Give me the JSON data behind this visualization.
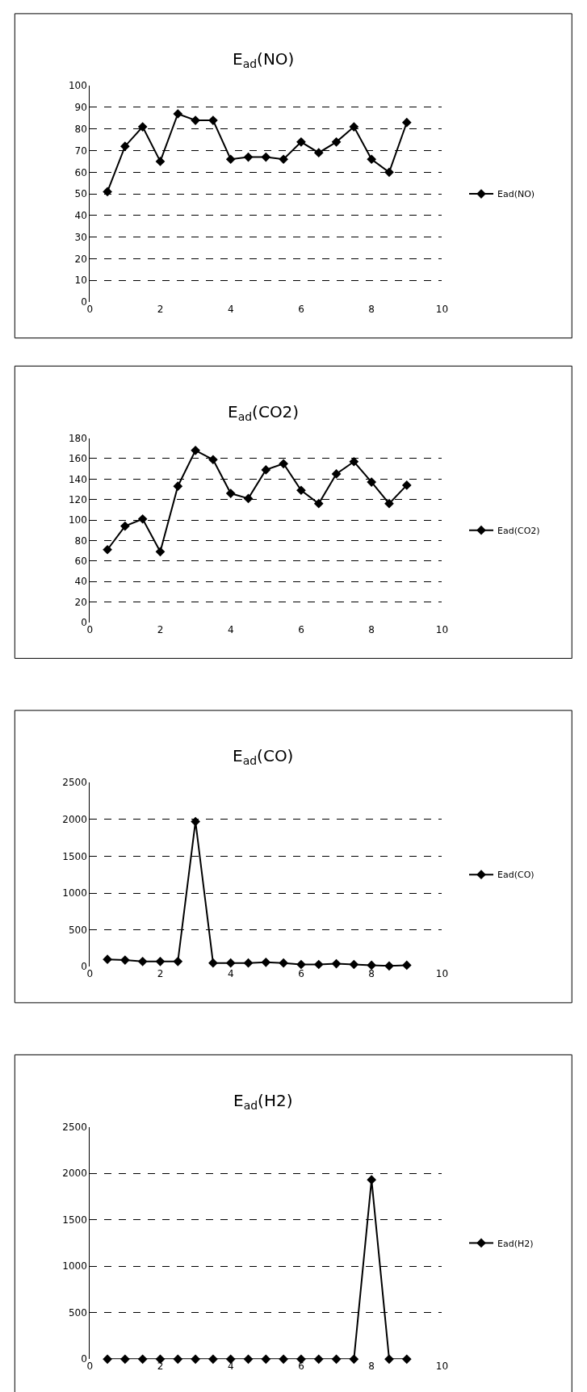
{
  "chart_data": [
    {
      "type": "line",
      "title": "E$_{ad}$(NO)",
      "x": [
        0.5,
        1,
        1.5,
        2,
        2.5,
        3,
        3.5,
        4,
        4.5,
        5,
        5.5,
        6,
        6.5,
        7,
        7.5,
        8,
        8.5,
        9
      ],
      "series": [
        {
          "name": "Ead(NO)",
          "color": "#000000",
          "values": [
            51,
            72,
            81,
            65,
            87,
            84,
            84,
            66,
            67,
            67,
            66,
            74,
            69,
            74,
            81,
            66,
            60,
            83
          ]
        }
      ],
      "xlim": [
        0,
        10
      ],
      "xticks": [
        0,
        2,
        4,
        6,
        {
          "value": 8,
          "label": "8"
        },
        10
      ],
      "ylim": [
        0,
        100
      ],
      "yticks": [
        0,
        10,
        20,
        30,
        40,
        50,
        60,
        70,
        80,
        90,
        100
      ],
      "grid": "y",
      "legend": "right",
      "marker": "diamond"
    },
    {
      "type": "line",
      "title": "E$_{ad}$(CO2)",
      "x": [
        0.5,
        1,
        1.5,
        2,
        2.5,
        3,
        3.5,
        4,
        4.5,
        5,
        5.5,
        6,
        6.5,
        7,
        7.5,
        8,
        8.5,
        9
      ],
      "series": [
        {
          "name": "Ead(CO2)",
          "color": "#000000",
          "values": [
            71,
            94,
            101,
            69,
            133,
            168,
            159,
            126,
            121,
            149,
            155,
            129,
            116,
            145,
            157,
            137,
            116,
            134
          ]
        }
      ],
      "xlim": [
        0,
        10
      ],
      "xticks": [
        0,
        2,
        4,
        6,
        8,
        10
      ],
      "ylim": [
        0,
        180
      ],
      "yticks": [
        0,
        20,
        40,
        60,
        80,
        100,
        120,
        140,
        160,
        180
      ],
      "grid": "y",
      "legend": "right",
      "marker": "diamond"
    },
    {
      "type": "line",
      "title": "E$_{ad}$(CO)",
      "x": [
        0.5,
        1,
        1.5,
        2,
        2.5,
        3,
        3.5,
        4,
        4.5,
        5,
        5.5,
        6,
        6.5,
        7,
        7.5,
        8,
        8.5,
        9
      ],
      "series": [
        {
          "name": "Ead(CO)",
          "color": "#000000",
          "values": [
            100,
            90,
            70,
            70,
            70,
            1970,
            50,
            50,
            50,
            60,
            50,
            30,
            30,
            40,
            30,
            20,
            10,
            20
          ]
        }
      ],
      "xlim": [
        0,
        10
      ],
      "xticks": [
        0,
        2,
        4,
        6,
        8,
        10
      ],
      "ylim": [
        0,
        2500
      ],
      "yticks": [
        0,
        500,
        1000,
        1500,
        2000,
        2500
      ],
      "grid": "y",
      "legend": "right",
      "marker": "diamond"
    },
    {
      "type": "line",
      "title": "E$_{ad}$(H2)",
      "x": [
        0.5,
        1,
        1.5,
        2,
        2.5,
        3,
        3.5,
        4,
        4.5,
        5,
        5.5,
        6,
        6.5,
        7,
        7.5,
        8,
        8.5,
        9
      ],
      "series": [
        {
          "name": "Ead(H2)",
          "color": "#000000",
          "values": [
            0,
            0,
            0,
            0,
            0,
            0,
            0,
            0,
            0,
            0,
            0,
            0,
            0,
            0,
            0,
            1930,
            0,
            0
          ]
        }
      ],
      "xlim": [
        0,
        10
      ],
      "xticks": [
        0,
        2,
        4,
        6,
        8,
        10
      ],
      "ylim": [
        0,
        2500
      ],
      "yticks": [
        0,
        500,
        1000,
        1500,
        2000,
        2500
      ],
      "grid": "y",
      "legend": "right",
      "marker": "diamond"
    }
  ]
}
